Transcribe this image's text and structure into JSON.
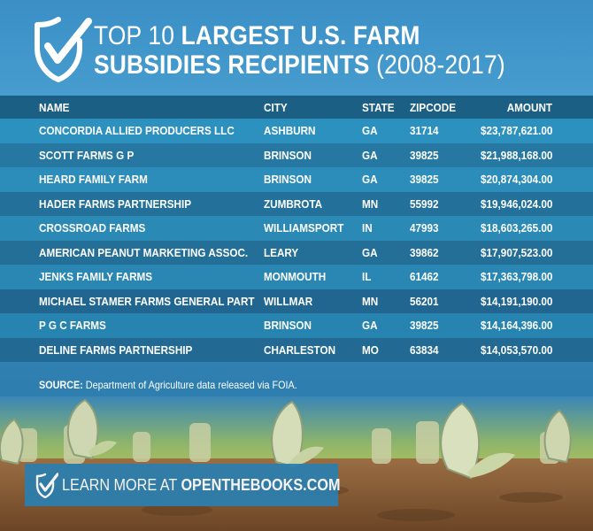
{
  "header": {
    "title_prefix": "TOP 10 ",
    "title_bold_1": "LARGEST U.S. FARM",
    "title_bold_2": "SUBSIDIES RECIPIENTS",
    "title_suffix": " (2008-2017)",
    "logo_icon": "shield-checkmark-icon"
  },
  "table": {
    "columns": [
      "NAME",
      "CITY",
      "STATE",
      "ZIPCODE",
      "AMOUNT"
    ],
    "rows": [
      {
        "name": "CONCORDIA ALLIED PRODUCERS LLC",
        "city": "ASHBURN",
        "state": "GA",
        "zip": "31714",
        "amount": "$23,787,621.00"
      },
      {
        "name": "SCOTT FARMS G P",
        "city": "BRINSON",
        "state": "GA",
        "zip": "39825",
        "amount": "$21,988,168.00"
      },
      {
        "name": "HEARD FAMILY FARM",
        "city": "BRINSON",
        "state": "GA",
        "zip": "39825",
        "amount": "$20,874,304.00"
      },
      {
        "name": "HADER FARMS PARTNERSHIP",
        "city": "ZUMBROTA",
        "state": "MN",
        "zip": "55992",
        "amount": "$19,946,024.00"
      },
      {
        "name": "CROSSROAD FARMS",
        "city": "WILLIAMSPORT",
        "state": "IN",
        "zip": "47993",
        "amount": "$18,603,265.00"
      },
      {
        "name": "AMERICAN PEANUT MARKETING ASSOC.",
        "city": "LEARY",
        "state": "GA",
        "zip": "39862",
        "amount": "$17,907,523.00"
      },
      {
        "name": "JENKS FAMILY FARMS",
        "city": "MONMOUTH",
        "state": "IL",
        "zip": "61462",
        "amount": "$17,363,798.00"
      },
      {
        "name": "MICHAEL STAMER FARMS GENERAL PART",
        "city": "WILLMAR",
        "state": "MN",
        "zip": "56201",
        "amount": "$14,191,190.00"
      },
      {
        "name": "P G C FARMS",
        "city": "BRINSON",
        "state": "GA",
        "zip": "39825",
        "amount": "$14,164,396.00"
      },
      {
        "name": "DELINE FARMS PARTNERSHIP",
        "city": "CHARLESTON",
        "state": "MO",
        "zip": "63834",
        "amount": "$14,053,570.00"
      }
    ]
  },
  "source": {
    "label": "SOURCE:",
    "text": " Department of Agriculture data released via FOIA."
  },
  "cta": {
    "prefix": "LEARN MORE AT ",
    "site": "OPENTHEBOOKS.COM",
    "icon": "checkmark-icon"
  },
  "colors": {
    "background_top": "#3a8fc6",
    "header_row": "#1b5f84",
    "row_light": "#2d91bf",
    "row_dark": "#2678a2",
    "cta_bar": "#2b7fb0",
    "text": "#ffffff"
  }
}
